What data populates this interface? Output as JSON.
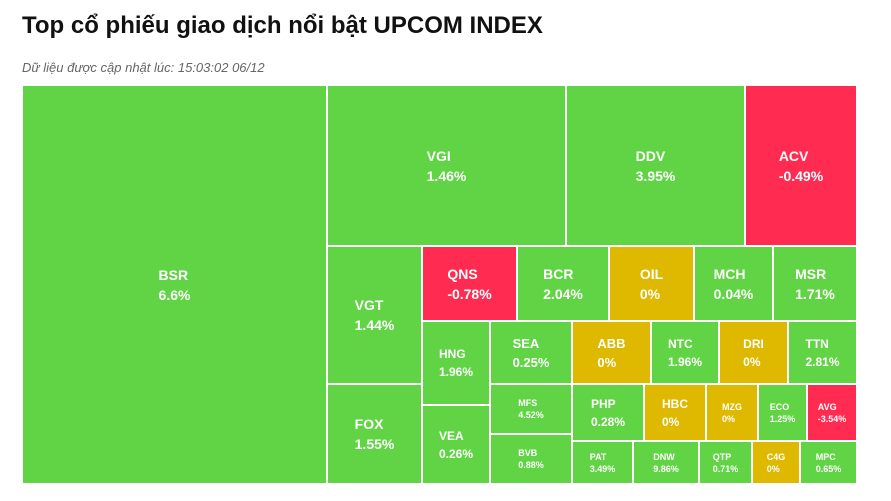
{
  "header": {
    "title": "Top cổ phiếu giao dịch nổi bật UPCOM INDEX",
    "subtitle": "Dữ liệu được cập nhật lúc: 15:03:02 06/12"
  },
  "tiles": [
    {
      "ticker": "BSR",
      "change": "6.6%"
    },
    {
      "ticker": "VGI",
      "change": "1.46%"
    },
    {
      "ticker": "DDV",
      "change": "3.95%"
    },
    {
      "ticker": "ACV",
      "change": "-0.49%"
    },
    {
      "ticker": "VGT",
      "change": "1.44%"
    },
    {
      "ticker": "FOX",
      "change": "1.55%"
    },
    {
      "ticker": "QNS",
      "change": "-0.78%"
    },
    {
      "ticker": "BCR",
      "change": "2.04%"
    },
    {
      "ticker": "OIL",
      "change": "0%"
    },
    {
      "ticker": "MCH",
      "change": "0.04%"
    },
    {
      "ticker": "MSR",
      "change": "1.71%"
    },
    {
      "ticker": "HNG",
      "change": "1.96%"
    },
    {
      "ticker": "VEA",
      "change": "0.26%"
    },
    {
      "ticker": "SEA",
      "change": "0.25%"
    },
    {
      "ticker": "ABB",
      "change": "0%"
    },
    {
      "ticker": "NTC",
      "change": "1.96%"
    },
    {
      "ticker": "DRI",
      "change": "0%"
    },
    {
      "ticker": "TTN",
      "change": "2.81%"
    },
    {
      "ticker": "MFS",
      "change": "4.52%"
    },
    {
      "ticker": "BVB",
      "change": "0.88%"
    },
    {
      "ticker": "PHP",
      "change": "0.28%"
    },
    {
      "ticker": "HBC",
      "change": "0%"
    },
    {
      "ticker": "MZG",
      "change": "0%"
    },
    {
      "ticker": "ECO",
      "change": "1.25%"
    },
    {
      "ticker": "AVG",
      "change": "-3.54%"
    },
    {
      "ticker": "PAT",
      "change": "3.49%"
    },
    {
      "ticker": "DNW",
      "change": "9.86%"
    },
    {
      "ticker": "QTP",
      "change": "0.71%"
    },
    {
      "ticker": "C4G",
      "change": "0%"
    },
    {
      "ticker": "MPC",
      "change": "0.65%"
    }
  ]
}
